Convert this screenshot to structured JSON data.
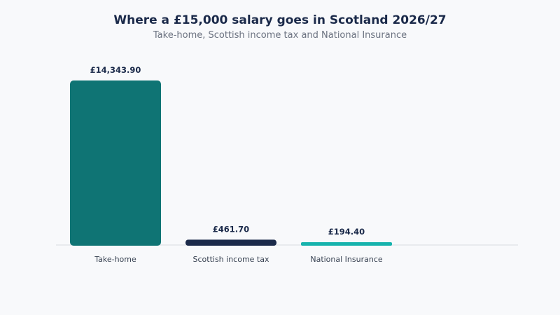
{
  "title": "Where a £15,000 salary goes in Scotland 2026/27",
  "subtitle": "Take-home, Scottish income tax and National Insurance",
  "chart_data": {
    "type": "bar",
    "title": "Where a £15,000 salary goes in Scotland 2026/27",
    "subtitle": "Take-home, Scottish income tax and National Insurance",
    "categories": [
      "Take-home",
      "Scottish income tax",
      "National Insurance"
    ],
    "values": [
      14343.9,
      461.7,
      194.4
    ],
    "value_labels": [
      "£14,343.90",
      "£461.70",
      "£194.40"
    ],
    "colors": [
      "#0f7474",
      "#1b2a4a",
      "#16b3ad"
    ],
    "xlabel": "",
    "ylabel": "",
    "ylim": [
      0,
      14343.9
    ],
    "grid": false,
    "legend": "none"
  }
}
